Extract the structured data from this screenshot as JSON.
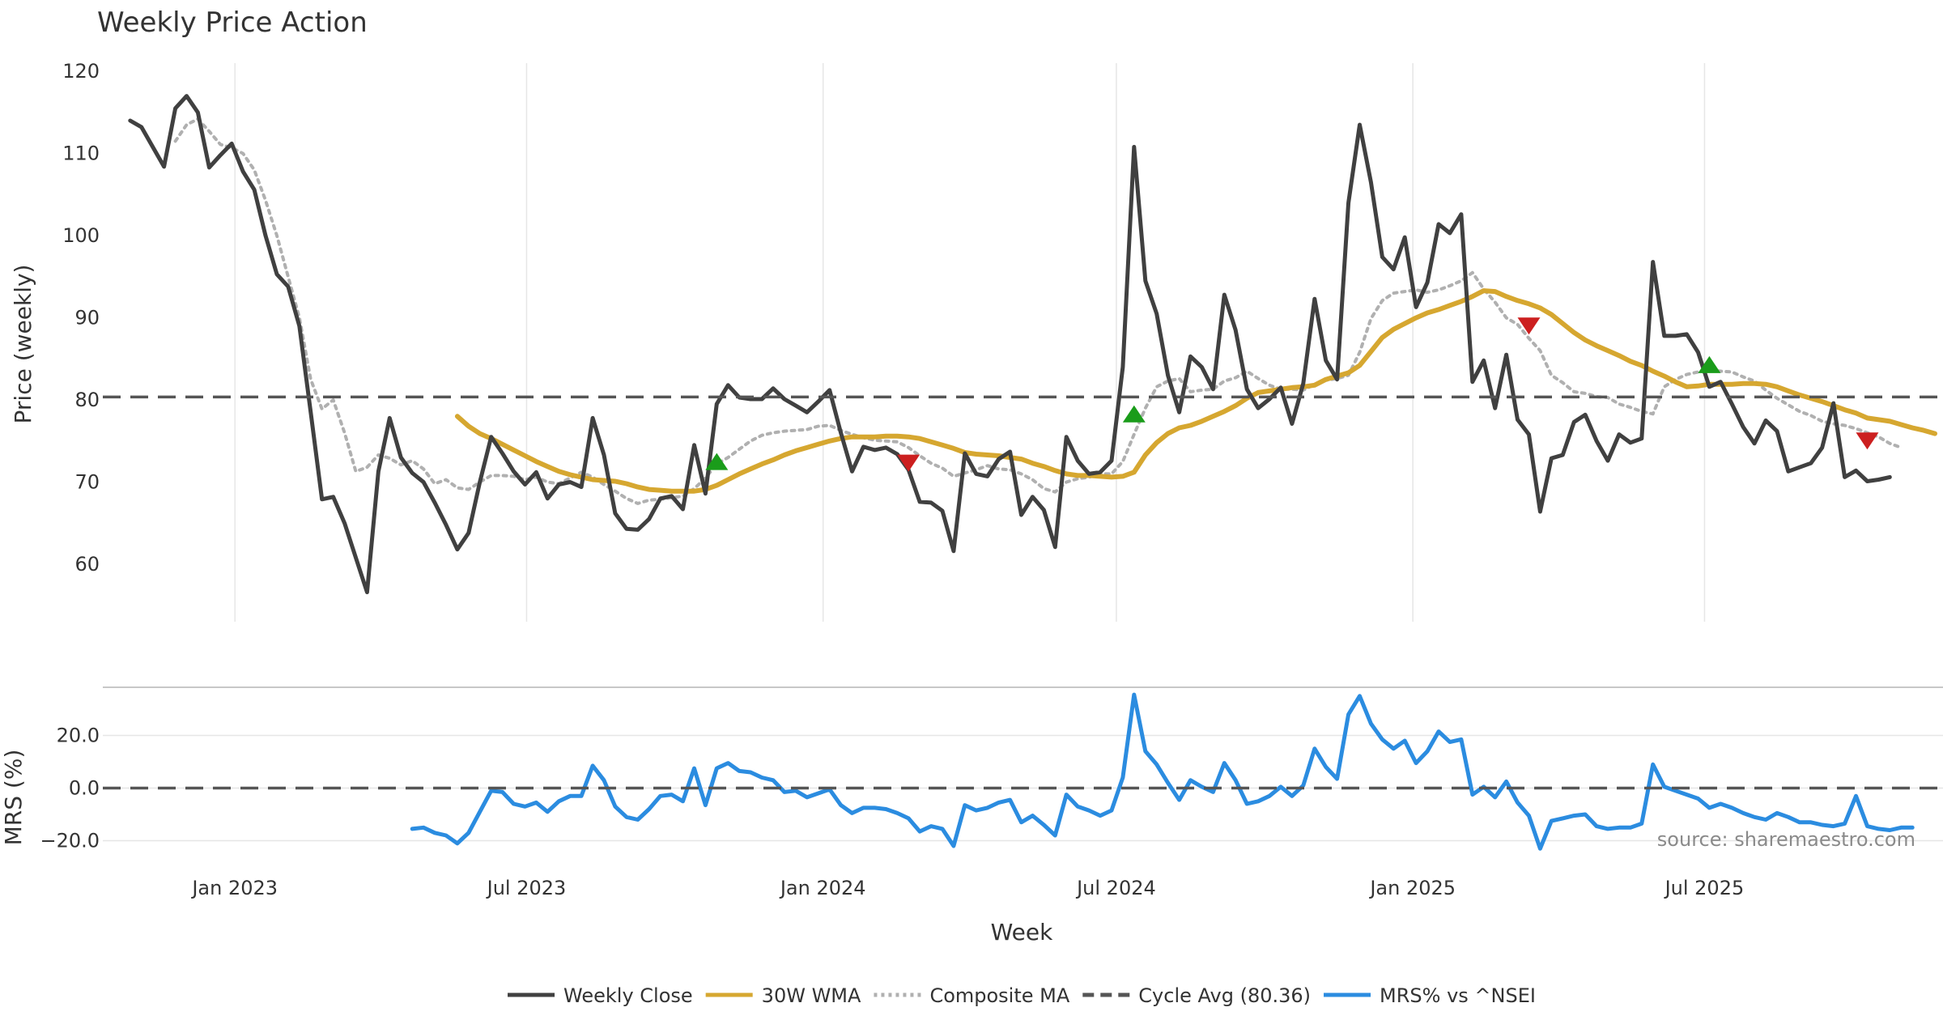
{
  "chart_data": [
    {
      "id": "price",
      "type": "line",
      "title": "Weekly Price Action",
      "xlabel": "Week",
      "ylabel": "Price (weekly)",
      "ylim": [
        53,
        121
      ],
      "yticks": [
        60,
        70,
        80,
        90,
        100,
        110,
        120
      ],
      "x_start": "2022-10-28",
      "x_interval": "weekly",
      "x_range_days": [
        -17,
        1125
      ],
      "xticks": [
        {
          "label": "Jan 2023",
          "day": 65
        },
        {
          "label": "Jul 2023",
          "day": 246
        },
        {
          "label": "Jan 2024",
          "day": 430
        },
        {
          "label": "Jul 2024",
          "day": 612
        },
        {
          "label": "Jan 2025",
          "day": 796
        },
        {
          "label": "Jul 2025",
          "day": 977
        }
      ],
      "series": [
        {
          "name": "Weekly Close",
          "color": "#404040",
          "style": "solid",
          "values": [
            114,
            113.2,
            110.8,
            108.4,
            115.5,
            117,
            115,
            108.3,
            109.8,
            111.2,
            107.8,
            105.6,
            100,
            95.3,
            93.8,
            89,
            78.5,
            67.9,
            68.2,
            65,
            60.8,
            56.6,
            71.3,
            77.8,
            73,
            71.1,
            70,
            67.5,
            64.8,
            61.8,
            63.8,
            70,
            75.5,
            73.5,
            71.3,
            69.7,
            71.2,
            68,
            69.7,
            70,
            69.4,
            77.8,
            73.3,
            66.2,
            64.3,
            64.2,
            65.5,
            68,
            68.3,
            66.7,
            74.5,
            68.6,
            79.5,
            81.8,
            80.3,
            80.1,
            80.1,
            81.4,
            80.1,
            79.3,
            78.5,
            79.8,
            81.2,
            76,
            71.3,
            74.3,
            73.9,
            74.2,
            73.4,
            71.5,
            67.6,
            67.5,
            66.5,
            61.6,
            73.5,
            71,
            70.7,
            72.8,
            73.7,
            66,
            68.2,
            66.6,
            62.1,
            75.5,
            72.6,
            71,
            71.2,
            72.6,
            84,
            110.8,
            94.5,
            90.5,
            83,
            78.5,
            85.3,
            84,
            81.3,
            92.8,
            88.5,
            81.3,
            79,
            80.1,
            81.5,
            77.1,
            82,
            92.3,
            84.8,
            82.5,
            104,
            113.5,
            106.5,
            97.4,
            95.9,
            99.8,
            91.3,
            94.3,
            101.4,
            100.3,
            102.6,
            82.2,
            84.8,
            79,
            85.5,
            77.6,
            75.8,
            66.4,
            72.9,
            73.3,
            77.3,
            78.2,
            75,
            72.6,
            75.8,
            74.8,
            75.3,
            96.8,
            87.8,
            87.8,
            88,
            85.8,
            81.6,
            82.2,
            79.5,
            76.7,
            74.7,
            77.5,
            76.2,
            71.3,
            71.8,
            72.3,
            74.2,
            79.6,
            70.6,
            71.4,
            70.1,
            70.3,
            70.6
          ]
        },
        {
          "name": "30W WMA",
          "color": "#d6a730",
          "style": "solid",
          "start_index": 29,
          "values": [
            78,
            76.8,
            75.9,
            75.3,
            74.6,
            73.9,
            73.2,
            72.5,
            71.9,
            71.3,
            70.9,
            70.6,
            70.3,
            70.2,
            70.1,
            69.8,
            69.4,
            69.1,
            69,
            68.9,
            68.9,
            68.9,
            69.1,
            69.6,
            70.3,
            71,
            71.6,
            72.2,
            72.7,
            73.3,
            73.8,
            74.2,
            74.6,
            75,
            75.3,
            75.5,
            75.5,
            75.5,
            75.6,
            75.6,
            75.5,
            75.3,
            74.9,
            74.5,
            74.1,
            73.6,
            73.4,
            73.3,
            73.2,
            73,
            72.8,
            72.3,
            71.9,
            71.4,
            71,
            70.8,
            70.8,
            70.7,
            70.6,
            70.7,
            71.2,
            73.3,
            74.8,
            75.9,
            76.6,
            76.9,
            77.4,
            78,
            78.6,
            79.3,
            80.2,
            80.9,
            81.1,
            81.3,
            81.5,
            81.6,
            81.8,
            82.5,
            82.9,
            83.3,
            84.2,
            85.9,
            87.6,
            88.6,
            89.3,
            90,
            90.6,
            91,
            91.5,
            92,
            92.6,
            93.3,
            93.2,
            92.6,
            92.1,
            91.7,
            91.2,
            90.4,
            89.3,
            88.2,
            87.3,
            86.6,
            86,
            85.4,
            84.7,
            84.2,
            83.5,
            82.9,
            82.2,
            81.6,
            81.7,
            81.9,
            81.9,
            81.9,
            82,
            82,
            81.9,
            81.6,
            81.1,
            80.6,
            80.2,
            79.8,
            79.3,
            78.8,
            78.4,
            77.8,
            77.6,
            77.4,
            77,
            76.6,
            76.3,
            75.9
          ]
        },
        {
          "name": "Composite MA",
          "color": "#b0b0b0",
          "style": "dotted",
          "start_index": 4,
          "values": [
            111.5,
            113.5,
            114.2,
            112.7,
            111.1,
            110.7,
            110,
            108,
            104.3,
            100,
            95,
            90,
            82.5,
            78.9,
            80,
            76,
            71.3,
            71.8,
            73.3,
            72.9,
            72.1,
            72.6,
            71.6,
            69.8,
            70.3,
            69.3,
            69.1,
            70,
            70.8,
            70.8,
            70.7,
            70.3,
            70.6,
            70,
            69.8,
            70.5,
            71.2,
            70.6,
            69.7,
            68.9,
            68,
            67.4,
            67.8,
            67.9,
            68.1,
            68.3,
            69.2,
            70.5,
            72.2,
            73,
            74,
            75,
            75.7,
            76,
            76.2,
            76.3,
            76.4,
            76.8,
            76.9,
            76.3,
            75.8,
            75.4,
            75.1,
            75,
            74.9,
            74.2,
            73.2,
            72.3,
            71.7,
            70.7,
            71.1,
            71.5,
            72,
            71.6,
            71.5,
            71,
            70.3,
            69.2,
            68.8,
            70,
            70.4,
            70.6,
            71,
            71,
            72.5,
            75.8,
            79,
            81.6,
            82.3,
            82.6,
            81,
            81.2,
            81.3,
            82.3,
            82.7,
            83.5,
            82.6,
            81.8,
            81.3,
            81.3,
            81.2,
            81.9,
            82.4,
            82.6,
            83,
            85.8,
            89.9,
            92.1,
            93,
            93.2,
            93.4,
            93.1,
            93.4,
            93.9,
            94.5,
            95.5,
            93.5,
            91.9,
            90,
            89.2,
            87.5,
            86,
            83,
            82.1,
            81,
            80.8,
            80.4,
            80.3,
            79.5,
            79.1,
            78.6,
            78.3,
            81.6,
            82.5,
            83.1,
            83.4,
            83.6,
            83.5,
            83.4,
            82.8,
            82.3,
            81.2,
            80.2,
            79.4,
            78.6,
            78.1,
            77.4,
            77.1,
            76.9,
            76.5,
            76,
            75.5,
            74.7,
            74.2
          ]
        },
        {
          "name": "Cycle Avg (80.36)",
          "color": "#555555",
          "style": "dashed",
          "value": 80.36
        }
      ],
      "signals": [
        {
          "type": "buy",
          "index": 52,
          "y": 72.5
        },
        {
          "type": "sell",
          "index": 69,
          "y": 72.3
        },
        {
          "type": "buy",
          "index": 89,
          "y": 78.3
        },
        {
          "type": "sell",
          "index": 124,
          "y": 89
        },
        {
          "type": "buy",
          "index": 140,
          "y": 84.3
        },
        {
          "type": "sell",
          "index": 154,
          "y": 75
        }
      ]
    },
    {
      "id": "mrs",
      "type": "line",
      "ylabel": "MRS (%)",
      "ylim": [
        -26,
        38
      ],
      "yticks": [
        {
          "v": -20,
          "label": "−20.0"
        },
        {
          "v": 0,
          "label": "0.0"
        },
        {
          "v": 20,
          "label": "20.0"
        }
      ],
      "series": [
        {
          "name": "MRS% vs ^NSEI",
          "color": "#2b8ce0",
          "style": "solid",
          "start_index": 25,
          "values": [
            -15.5,
            -15,
            -17,
            -18,
            -21,
            -17,
            -9,
            -1,
            -1.5,
            -6,
            -7,
            -5.5,
            -9,
            -5,
            -3,
            -3,
            8.5,
            3,
            -7,
            -11,
            -12,
            -8,
            -3,
            -2.5,
            -5,
            7.5,
            -6.5,
            7.5,
            9.5,
            6.5,
            6,
            4,
            3,
            -1.5,
            -1,
            -3.5,
            -2,
            -0.5,
            -6.5,
            -9.5,
            -7.5,
            -7.5,
            -8,
            -9.5,
            -11.5,
            -16.5,
            -14.5,
            -15.5,
            -22,
            -6.5,
            -8.5,
            -7.5,
            -5.5,
            -4.5,
            -13,
            -10.5,
            -14,
            -18,
            -2.5,
            -7,
            -8.5,
            -10.5,
            -8.5,
            4,
            35.5,
            14,
            9,
            2,
            -4.5,
            3,
            0.5,
            -1.5,
            9.5,
            3,
            -6,
            -5,
            -3,
            0.5,
            -3,
            1,
            15,
            8,
            3.5,
            28,
            35,
            24.5,
            18.5,
            15,
            18,
            9.5,
            14,
            21.5,
            17.5,
            18.5,
            -2.5,
            0.5,
            -3.5,
            2.5,
            -5.5,
            -10.5,
            -23,
            -12.5,
            -11.5,
            -10.5,
            -10,
            -14.5,
            -15.5,
            -15,
            -15,
            -13.5,
            9,
            0.5,
            -1,
            -2.5,
            -4,
            -7.5,
            -6,
            -7.5,
            -9.5,
            -11,
            -12,
            -9.5,
            -11,
            -13,
            -13,
            -14,
            -14.5,
            -13.5,
            -3,
            -14.5,
            -15.5,
            -16,
            -15,
            -15
          ]
        },
        {
          "name": "MRS zero line",
          "color": "#555555",
          "style": "dashed",
          "value": 0
        }
      ]
    }
  ],
  "source_note": "source: sharemaestro.com",
  "legend": [
    {
      "label": "Weekly Close",
      "color": "#404040",
      "style": "solid"
    },
    {
      "label": "30W WMA",
      "color": "#d6a730",
      "style": "solid"
    },
    {
      "label": "Composite MA",
      "color": "#b0b0b0",
      "style": "dotted"
    },
    {
      "label": "Cycle Avg (80.36)",
      "color": "#555555",
      "style": "dashed"
    },
    {
      "label": "MRS% vs ^NSEI",
      "color": "#2b8ce0",
      "style": "solid"
    }
  ],
  "colors": {
    "buy": "#1a9c1a",
    "sell": "#cc1f1f",
    "grid": "#e6e6e6",
    "separator": "#c8c8c8"
  }
}
